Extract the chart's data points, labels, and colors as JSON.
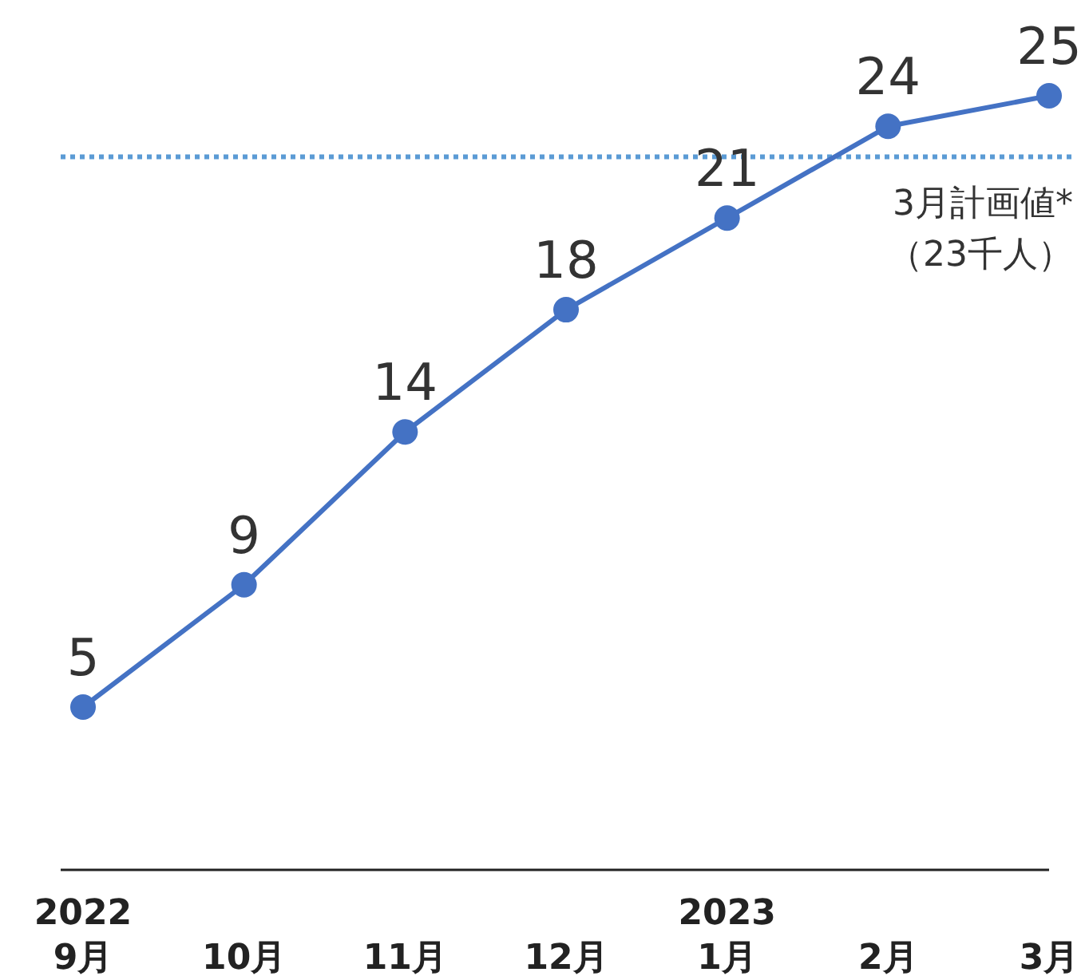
{
  "chart_data": {
    "type": "line",
    "categories": [
      "2022\n9月",
      "10月",
      "11月",
      "12月",
      "2023\n1月",
      "2月",
      "3月"
    ],
    "series": [
      {
        "color": "#4472c4",
        "values": [
          5,
          9,
          14,
          18,
          21,
          24,
          25
        ]
      }
    ],
    "data_labels": true,
    "marker": "circle",
    "line_style": "solid",
    "grid": false,
    "ref_lines": [
      {
        "axis": "y",
        "value": 23,
        "label": "3月計画値*\n（23千人）",
        "color": "#5b9bd5",
        "line_style": "dotted"
      }
    ]
  }
}
